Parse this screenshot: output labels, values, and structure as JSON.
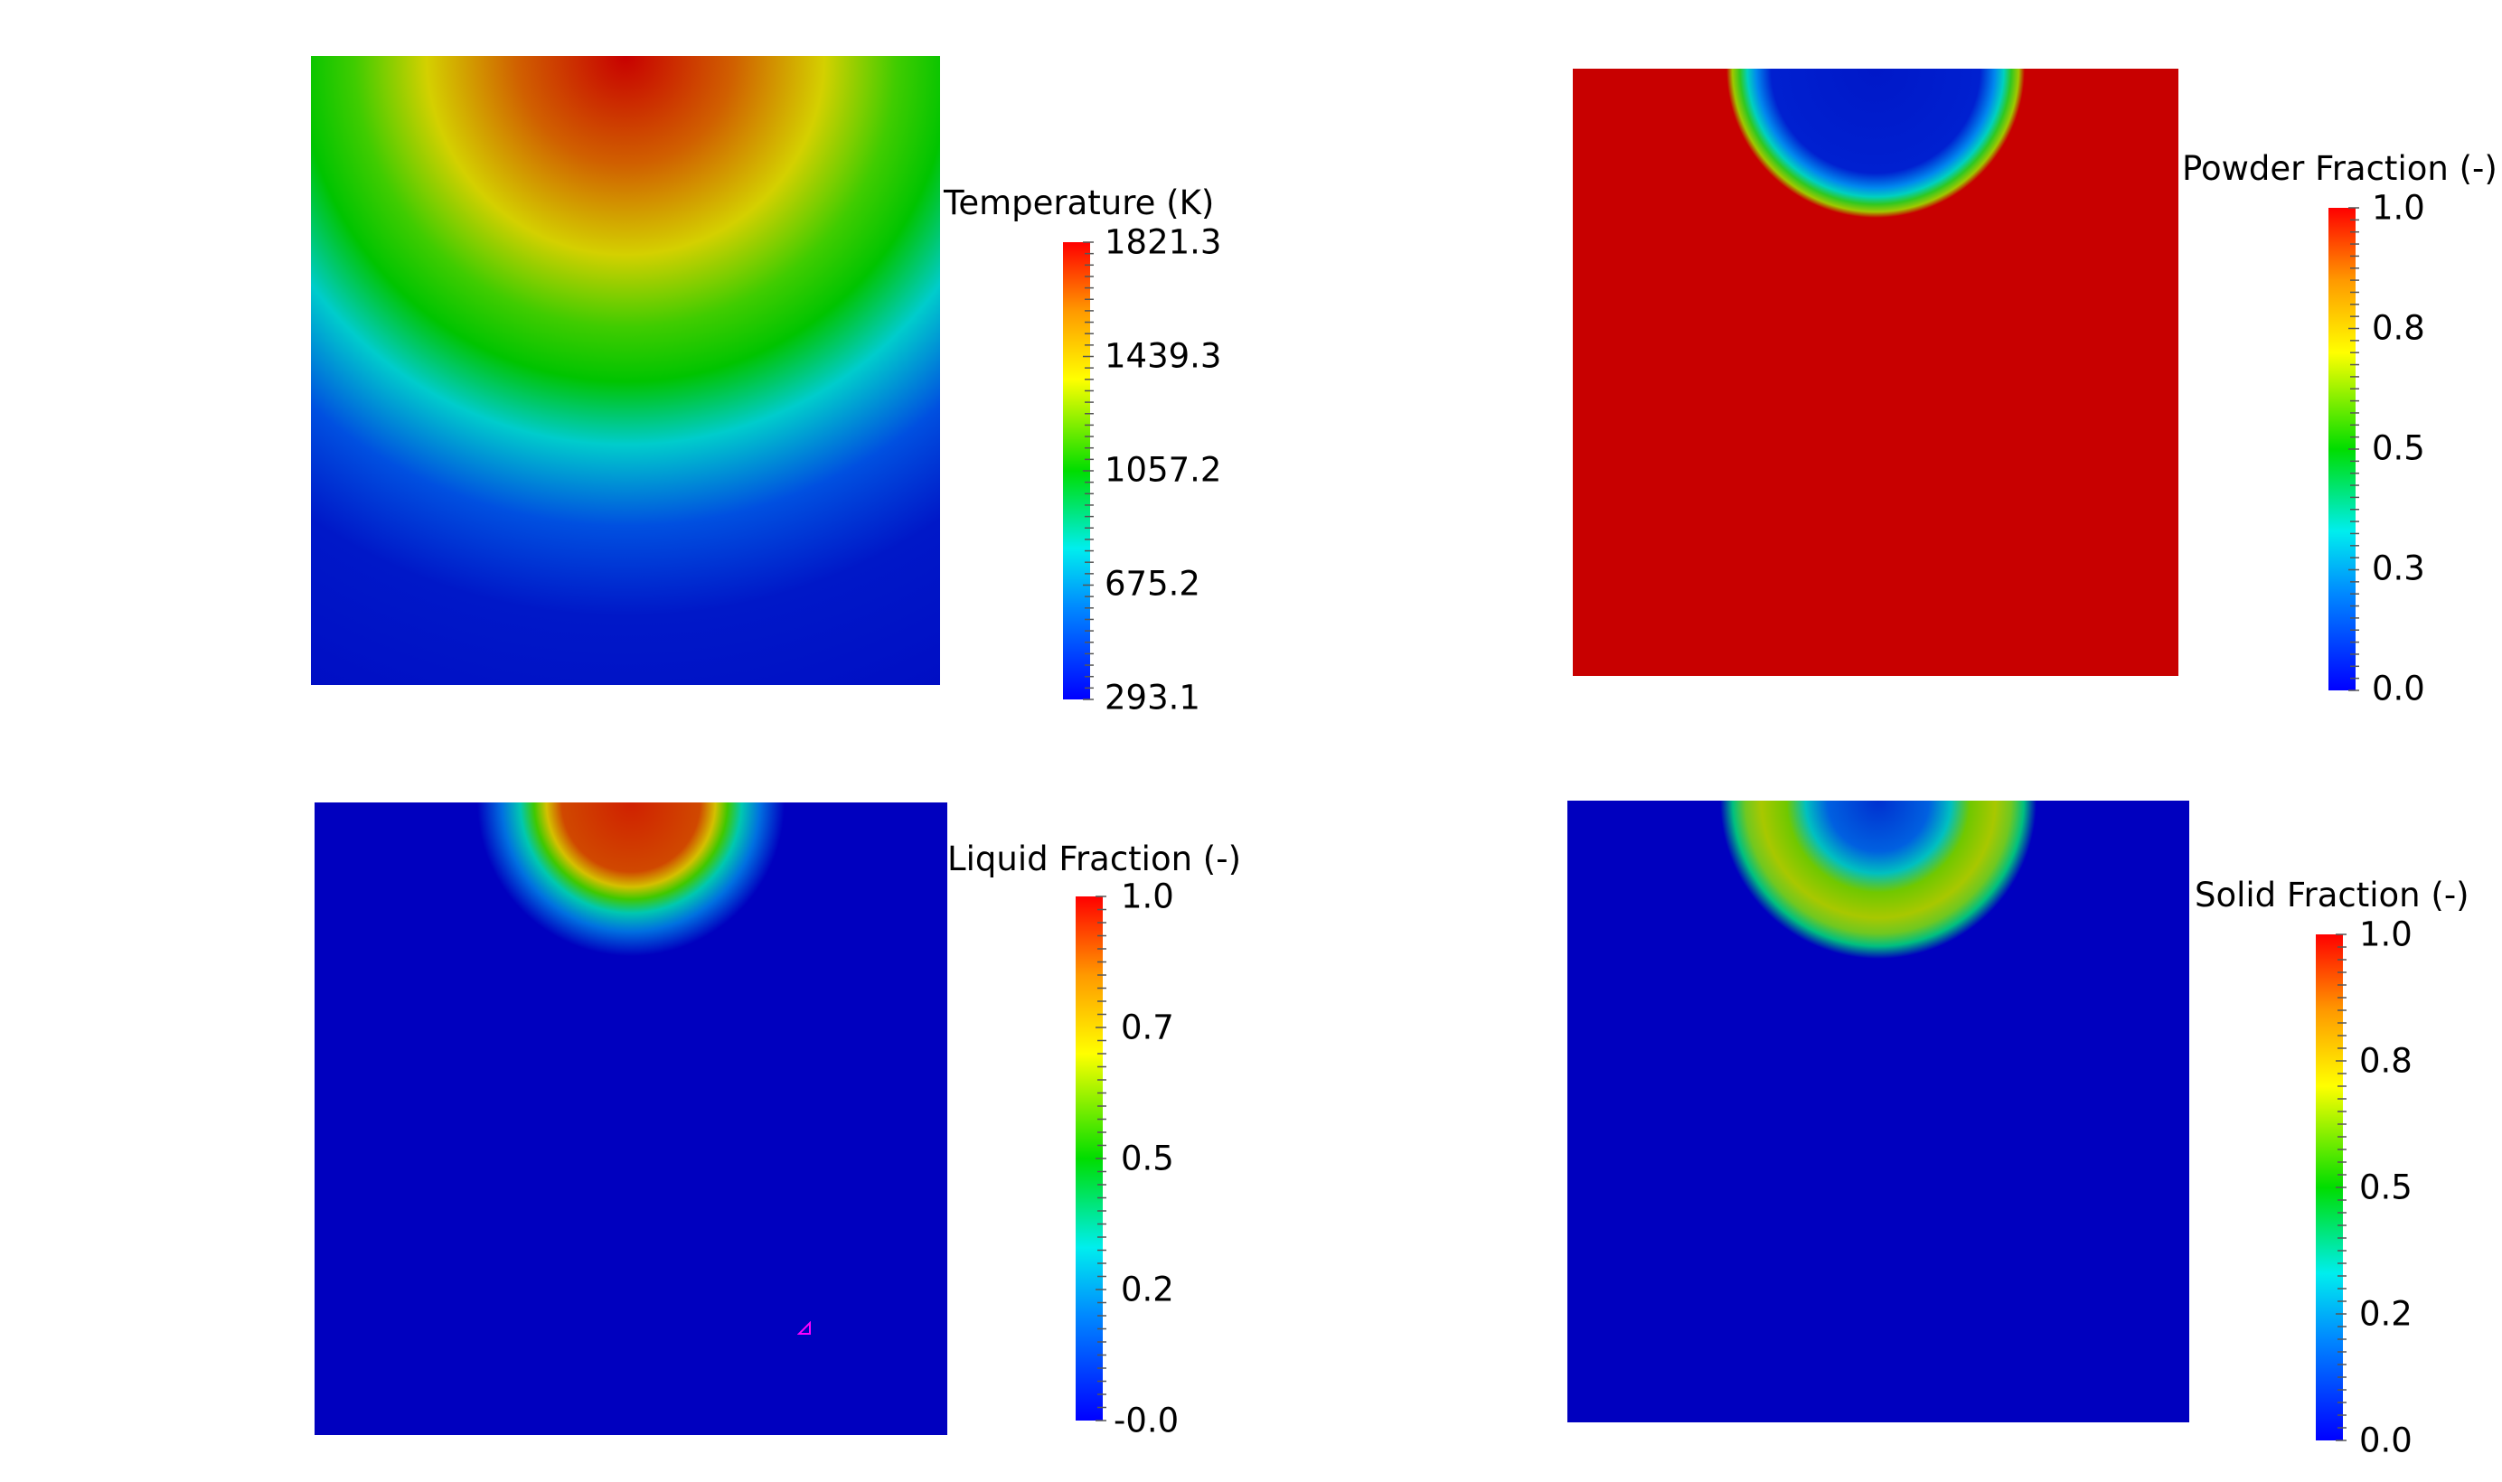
{
  "panels": [
    {
      "id": "temperature",
      "colorbar": {
        "title": "Temperature (K)",
        "labels": [
          "1821.3",
          "1439.3",
          "1057.2",
          "675.2",
          "293.1"
        ]
      }
    },
    {
      "id": "powder",
      "colorbar": {
        "title": "Powder Fraction (-)",
        "labels": [
          "1.0",
          "0.8",
          "0.5",
          "0.3",
          "0.0"
        ]
      }
    },
    {
      "id": "liquid",
      "colorbar": {
        "title": "Liquid Fraction (-)",
        "labels": [
          "1.0",
          "0.7",
          "0.5",
          "0.2",
          "-0.0"
        ]
      }
    },
    {
      "id": "solid",
      "colorbar": {
        "title": "Solid Fraction (-)",
        "labels": [
          "1.0",
          "0.8",
          "0.5",
          "0.2",
          "0.0"
        ]
      }
    }
  ],
  "colors": {
    "field_red": "#c80000",
    "field_blue": "#0000c0",
    "marker": "#ff00ff"
  }
}
